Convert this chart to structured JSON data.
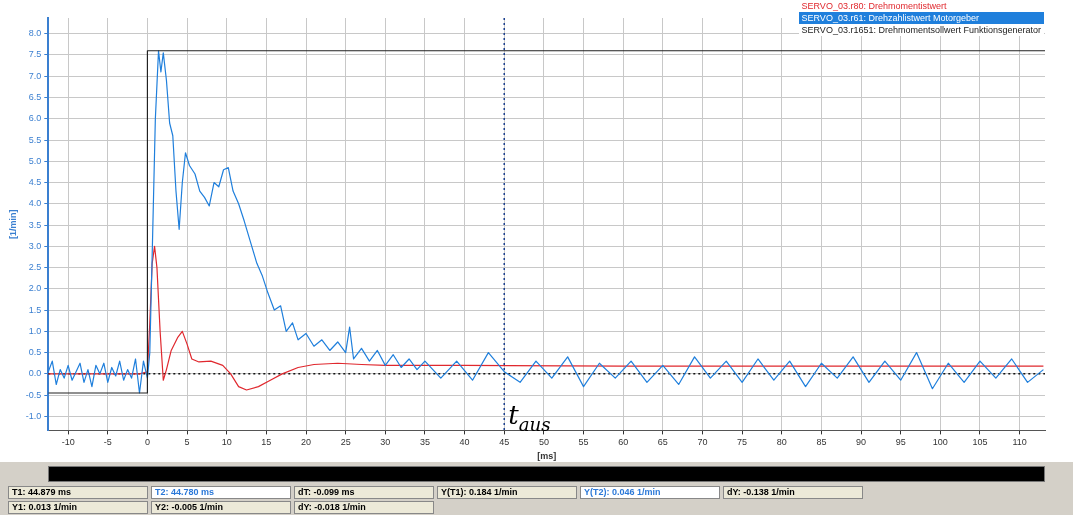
{
  "chart_data": {
    "type": "line",
    "xlabel": "[ms]",
    "ylabel": "[1/min]",
    "xlim": [
      -12.5,
      113.2
    ],
    "ylim": [
      -1.33,
      8.37
    ],
    "xticks": [
      -10,
      -5,
      0,
      5,
      10,
      15,
      20,
      25,
      30,
      35,
      40,
      45,
      50,
      55,
      60,
      65,
      70,
      75,
      80,
      85,
      90,
      95,
      100,
      105,
      110
    ],
    "yticks": [
      {
        "value": -1,
        "label": "-1.0"
      },
      {
        "value": -0.5,
        "label": "-0.5"
      },
      {
        "value": 0,
        "label": "0.0"
      },
      {
        "value": 0.5,
        "label": "0.5"
      },
      {
        "value": 1,
        "label": "1.0"
      },
      {
        "value": 1.5,
        "label": "1.5"
      },
      {
        "value": 2,
        "label": "2.0"
      },
      {
        "value": 2.5,
        "label": "2.5"
      },
      {
        "value": 3,
        "label": "3.0"
      },
      {
        "value": 3.5,
        "label": "3.5"
      },
      {
        "value": 4,
        "label": "4.0"
      },
      {
        "value": 4.5,
        "label": "4.5"
      },
      {
        "value": 5,
        "label": "5.0"
      },
      {
        "value": 5.5,
        "label": "5.5"
      },
      {
        "value": 6,
        "label": "6.0"
      },
      {
        "value": 6.5,
        "label": "6.5"
      },
      {
        "value": 7,
        "label": "7.0"
      },
      {
        "value": 7.5,
        "label": "7.5"
      },
      {
        "value": 8,
        "label": "8.0"
      }
    ],
    "grid": true,
    "legend": "top right",
    "marker": "none",
    "series": [
      {
        "name": "SERVO_03.r80: Drehmomentistwert",
        "color": "#e0282e",
        "x": [
          -12.5,
          -1,
          0,
          0.3,
          0.6,
          0.9,
          1.2,
          1.6,
          2.0,
          2.4,
          3.0,
          3.8,
          4.4,
          5.0,
          5.6,
          6.5,
          8.0,
          9.5,
          10.5,
          11.5,
          12.5,
          14,
          15.5,
          17,
          19,
          21,
          24,
          27,
          30,
          40,
          60,
          80,
          100,
          113
        ],
        "values": [
          0,
          0,
          0.05,
          1.2,
          2.6,
          3.0,
          2.5,
          1.0,
          -0.15,
          0.1,
          0.55,
          0.85,
          1.0,
          0.7,
          0.35,
          0.28,
          0.3,
          0.2,
          0.0,
          -0.3,
          -0.38,
          -0.3,
          -0.15,
          0.0,
          0.15,
          0.22,
          0.25,
          0.22,
          0.2,
          0.2,
          0.18,
          0.18,
          0.18,
          0.18
        ]
      },
      {
        "name": "SERVO_03.r61: Drehzahlistwert Motorgeber",
        "color": "#1f7fdc",
        "x": [
          -12.5,
          -12,
          -11.5,
          -11,
          -10.5,
          -10,
          -9.5,
          -9,
          -8.5,
          -8,
          -7.5,
          -7,
          -6.5,
          -6,
          -5.5,
          -5,
          -4.5,
          -4,
          -3.5,
          -3,
          -2.5,
          -2,
          -1.5,
          -1,
          -0.5,
          0,
          0.3,
          0.6,
          1.0,
          1.4,
          1.7,
          2.0,
          2.4,
          2.8,
          3.2,
          3.6,
          4.0,
          4.4,
          4.8,
          5.3,
          6.0,
          6.6,
          7.2,
          7.8,
          8.4,
          9.0,
          9.6,
          10.2,
          10.8,
          11.5,
          12.2,
          13.0,
          13.8,
          14.5,
          15.2,
          16.0,
          16.8,
          17.5,
          18.3,
          19.0,
          20.0,
          21.0,
          22.0,
          23.0,
          24.0,
          25.0,
          25.5,
          26.0,
          27.0,
          28.0,
          29.0,
          30.0,
          31.0,
          32.0,
          33.0,
          34.0,
          35,
          37,
          39,
          41,
          43,
          45,
          47,
          49,
          51,
          53,
          55,
          57,
          59,
          61,
          63,
          65,
          67,
          69,
          71,
          73,
          75,
          77,
          79,
          81,
          83,
          85,
          87,
          89,
          91,
          93,
          95,
          97,
          99,
          101,
          103,
          105,
          107,
          109,
          111,
          113
        ],
        "values": [
          0.05,
          0.3,
          -0.25,
          0.1,
          -0.1,
          0.2,
          -0.15,
          0.05,
          0.25,
          -0.2,
          0.1,
          -0.3,
          0.2,
          0.0,
          0.25,
          -0.2,
          0.15,
          -0.05,
          0.3,
          -0.15,
          0.1,
          -0.1,
          0.35,
          -0.45,
          0.3,
          -0.1,
          0.5,
          2.8,
          6.0,
          7.6,
          7.1,
          7.55,
          6.9,
          5.9,
          5.6,
          4.3,
          3.4,
          4.5,
          5.2,
          4.9,
          4.7,
          4.3,
          4.15,
          3.95,
          4.5,
          4.4,
          4.8,
          4.85,
          4.3,
          4.0,
          3.6,
          3.1,
          2.6,
          2.3,
          1.9,
          1.5,
          1.6,
          1.0,
          1.2,
          0.8,
          0.95,
          0.65,
          0.8,
          0.55,
          0.75,
          0.5,
          1.1,
          0.35,
          0.6,
          0.3,
          0.55,
          0.2,
          0.45,
          0.15,
          0.35,
          0.1,
          0.3,
          -0.1,
          0.3,
          -0.15,
          0.5,
          0.05,
          -0.2,
          0.3,
          -0.1,
          0.4,
          -0.3,
          0.25,
          -0.1,
          0.3,
          -0.2,
          0.2,
          -0.25,
          0.4,
          -0.1,
          0.3,
          -0.2,
          0.35,
          -0.15,
          0.3,
          -0.3,
          0.25,
          -0.1,
          0.4,
          -0.2,
          0.3,
          -0.15,
          0.5,
          -0.35,
          0.25,
          -0.2,
          0.3,
          -0.1,
          0.35,
          -0.2,
          0.1
        ]
      },
      {
        "name": "SERVO_03.r1651: Drehmomentsollwert Funktionsgenerator",
        "type": "step",
        "color": "#222222",
        "x": [
          -12.5,
          0,
          113.2
        ],
        "values": [
          -0.45,
          7.6,
          7.6
        ]
      }
    ],
    "ref_lines": [
      {
        "axis": "x",
        "value": 45,
        "label": "t$_{aus}$",
        "color": "#1a3f8f",
        "line_style": "dotted"
      },
      {
        "axis": "y",
        "value": 0,
        "color": "#111111",
        "line_style": "dotted"
      }
    ],
    "annotations": [
      "T1: 44.879 ms",
      "T2: 44.780 ms",
      "dT: -0.099 ms",
      "Y(T1): 0.184 1/min",
      "Y(T2): 0.046 1/min",
      "dY: -0.138 1/min",
      "Y1: 0.013 1/min",
      "Y2: -0.005 1/min",
      "dY: -0.018 1/min"
    ]
  }
}
